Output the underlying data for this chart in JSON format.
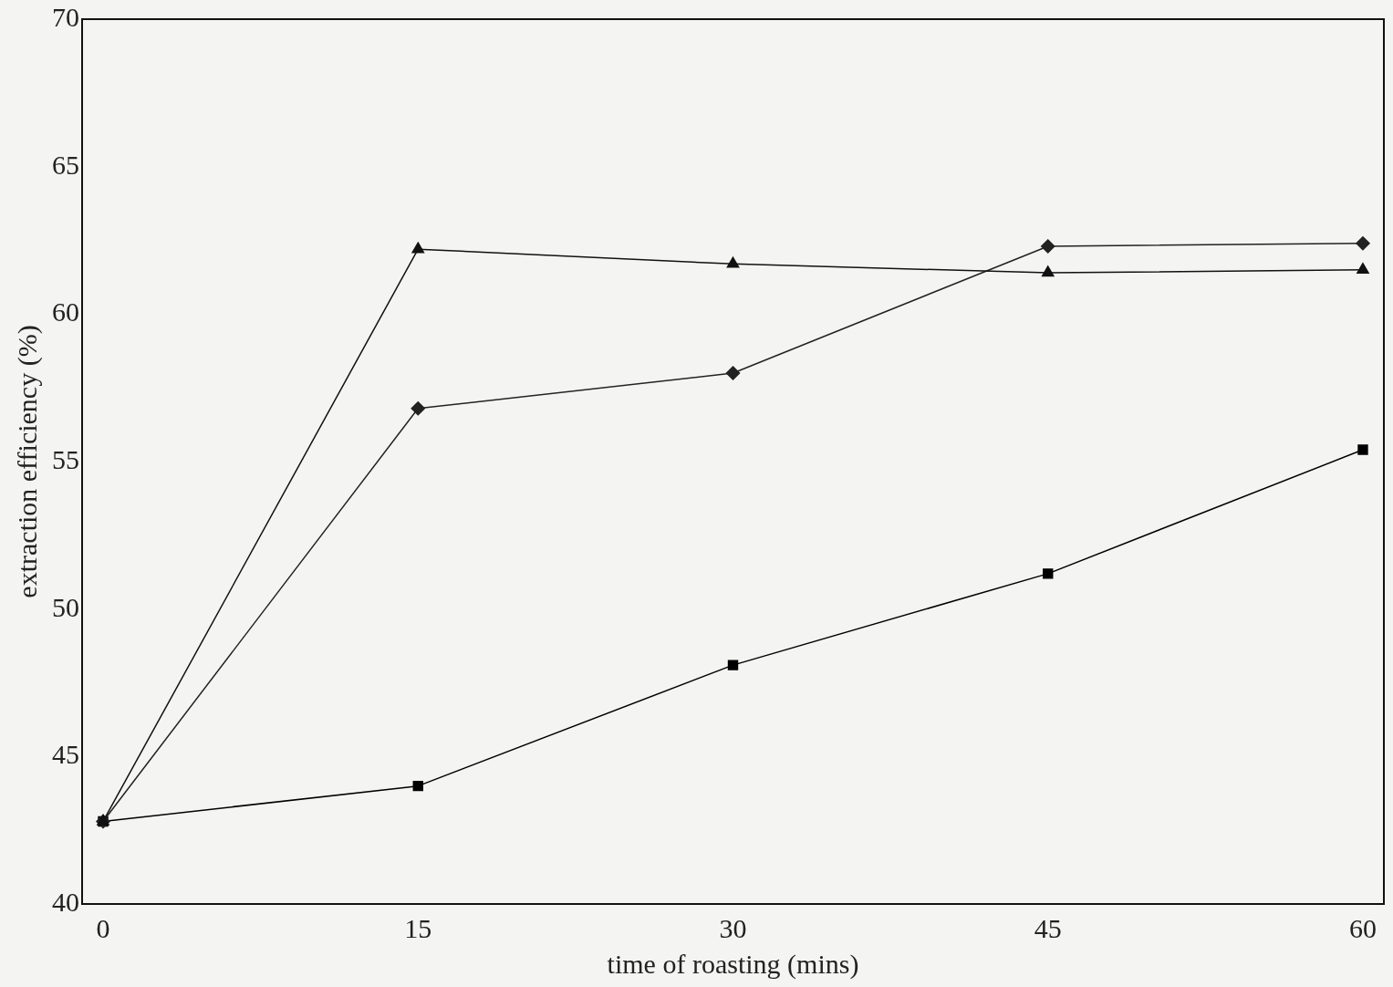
{
  "chart_data": {
    "type": "line",
    "xlabel": "time of roasting (mins)",
    "ylabel": "extraction efficiency (%)",
    "x": [
      0,
      15,
      30,
      45,
      60
    ],
    "xlim": [
      -1,
      61
    ],
    "xticks": [
      0,
      15,
      30,
      45,
      60
    ],
    "ylim": [
      40,
      70
    ],
    "yticks": [
      40,
      45,
      50,
      55,
      60,
      65,
      70
    ],
    "grid": false,
    "legend": false,
    "series": [
      {
        "color": "#111111",
        "marker": "triangle",
        "values": [
          42.8,
          62.2,
          61.7,
          61.4,
          61.5
        ]
      },
      {
        "color": "#222222",
        "marker": "diamond",
        "values": [
          42.8,
          56.8,
          58.0,
          62.3,
          62.4
        ]
      },
      {
        "color": "#000000",
        "marker": "square",
        "values": [
          42.8,
          44.0,
          48.1,
          51.2,
          55.4
        ]
      }
    ]
  }
}
